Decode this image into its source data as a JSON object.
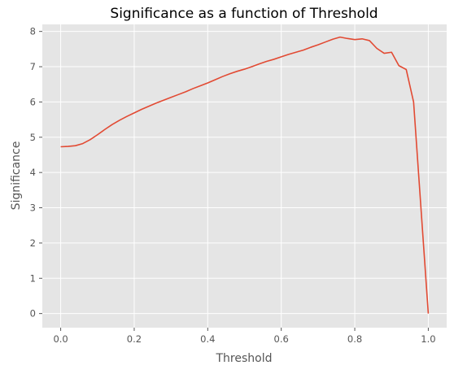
{
  "chart_data": {
    "type": "line",
    "title": "Significance as a function of Threshold",
    "xlabel": "Threshold",
    "ylabel": "Significance",
    "xlim": [
      -0.05,
      1.05
    ],
    "ylim": [
      -0.4,
      8.2
    ],
    "xticks": [
      0.0,
      0.2,
      0.4,
      0.6,
      0.8,
      1.0
    ],
    "xtick_labels": [
      "0.0",
      "0.2",
      "0.4",
      "0.6",
      "0.8",
      "1.0"
    ],
    "yticks": [
      0,
      1,
      2,
      3,
      4,
      5,
      6,
      7,
      8
    ],
    "ytick_labels": [
      "0",
      "1",
      "2",
      "3",
      "4",
      "5",
      "6",
      "7",
      "8"
    ],
    "grid": true,
    "background_color": "#e5e5e5",
    "line_color": "#e24a33",
    "series": [
      {
        "x": [
          0.0,
          0.02,
          0.04,
          0.06,
          0.08,
          0.1,
          0.12,
          0.14,
          0.16,
          0.18,
          0.2,
          0.22,
          0.24,
          0.26,
          0.28,
          0.3,
          0.32,
          0.34,
          0.36,
          0.38,
          0.4,
          0.42,
          0.44,
          0.46,
          0.48,
          0.5,
          0.52,
          0.54,
          0.56,
          0.58,
          0.6,
          0.62,
          0.64,
          0.66,
          0.68,
          0.7,
          0.72,
          0.74,
          0.76,
          0.78,
          0.8,
          0.82,
          0.84,
          0.86,
          0.88,
          0.9,
          0.92,
          0.94,
          0.96,
          0.98,
          1.0
        ],
        "y": [
          4.73,
          4.74,
          4.76,
          4.82,
          4.93,
          5.07,
          5.22,
          5.36,
          5.48,
          5.59,
          5.69,
          5.79,
          5.88,
          5.97,
          6.05,
          6.13,
          6.21,
          6.29,
          6.38,
          6.46,
          6.54,
          6.63,
          6.72,
          6.8,
          6.87,
          6.93,
          7.0,
          7.08,
          7.15,
          7.21,
          7.28,
          7.35,
          7.41,
          7.47,
          7.55,
          7.62,
          7.7,
          7.78,
          7.84,
          7.8,
          7.77,
          7.79,
          7.74,
          7.52,
          7.38,
          7.41,
          7.03,
          6.92,
          6.0,
          3.0,
          0.0
        ]
      }
    ]
  }
}
